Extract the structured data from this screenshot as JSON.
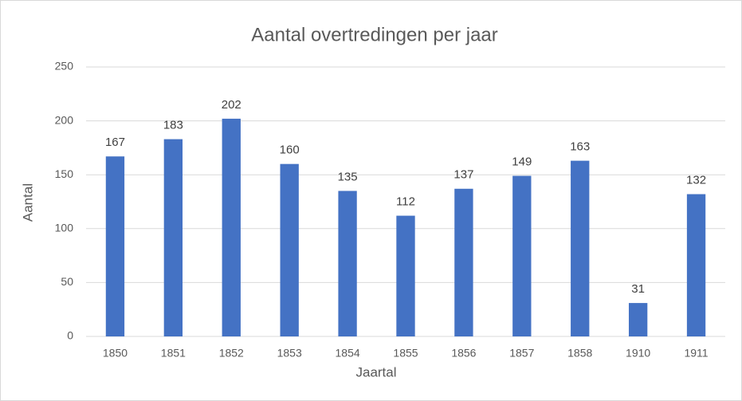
{
  "chart_data": {
    "type": "bar",
    "title": "Aantal overtredingen per jaar",
    "x_label": "Jaartal",
    "y_label": "Aantal",
    "categories": [
      "1850",
      "1851",
      "1852",
      "1853",
      "1854",
      "1855",
      "1856",
      "1857",
      "1858",
      "1910",
      "1911"
    ],
    "values": [
      167,
      183,
      202,
      160,
      135,
      112,
      137,
      149,
      163,
      31,
      132
    ],
    "color": "#4472c4",
    "ylim": [
      0,
      250
    ],
    "yticks": [
      0,
      50,
      100,
      150,
      200,
      250
    ],
    "grid": true,
    "data_labels": true
  }
}
